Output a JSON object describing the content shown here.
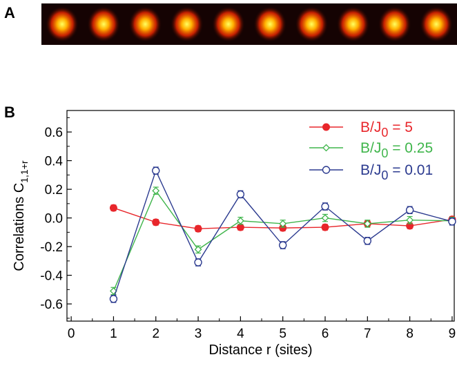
{
  "panel_a": {
    "label": "A",
    "ion_count": 10,
    "background_color": "#150303",
    "glow_color": "#ff2a00",
    "core_color": "#ffff60"
  },
  "panel_b": {
    "label": "B"
  },
  "chart_data": {
    "type": "line",
    "xlabel": "Distance r (sites)",
    "ylabel": "Correlations C",
    "ylabel_subscript": "1,1+r",
    "xlim": [
      -0.1,
      9.05
    ],
    "ylim": [
      -0.72,
      0.75
    ],
    "xticks": [
      0,
      1,
      2,
      3,
      4,
      5,
      6,
      7,
      8,
      9
    ],
    "xtick_labels": [
      "0",
      "1",
      "2",
      "3",
      "4",
      "5",
      "6",
      "7",
      "8",
      "9"
    ],
    "yticks": [
      0.6,
      0.4,
      0.2,
      0.0,
      -0.2,
      -0.4,
      -0.6
    ],
    "ytick_labels": [
      "0.6",
      "0.4",
      "0.2",
      "0.0",
      "-0.2",
      "-0.4",
      "-0.6"
    ],
    "legend_position": "top-right",
    "series": [
      {
        "name_main": "B/J",
        "name_sub": "0",
        "name_suffix": " = 5",
        "color": "#e8262b",
        "marker": "filled-circle",
        "x": [
          1,
          2,
          3,
          4,
          5,
          6,
          7,
          8,
          9
        ],
        "y": [
          0.07,
          -0.03,
          -0.075,
          -0.065,
          -0.07,
          -0.065,
          -0.04,
          -0.055,
          -0.01
        ],
        "err": [
          0.02,
          0.02,
          0.02,
          0.02,
          0.02,
          0.02,
          0.02,
          0.02,
          0.02
        ]
      },
      {
        "name_main": "B/J",
        "name_sub": "0",
        "name_suffix": " = 0.25",
        "color": "#3fb54b",
        "marker": "open-diamond",
        "x": [
          1,
          2,
          3,
          4,
          5,
          6,
          7,
          8,
          9
        ],
        "y": [
          -0.51,
          0.19,
          -0.22,
          -0.02,
          -0.04,
          0.0,
          -0.04,
          -0.015,
          -0.02
        ],
        "err": [
          0.025,
          0.025,
          0.025,
          0.025,
          0.025,
          0.025,
          0.025,
          0.025,
          0.025
        ]
      },
      {
        "name_main": "B/J",
        "name_sub": "0",
        "name_suffix": " = 0.01",
        "color": "#2b3a8f",
        "marker": "open-circle",
        "x": [
          1,
          2,
          3,
          4,
          5,
          6,
          7,
          8,
          9
        ],
        "y": [
          -0.565,
          0.33,
          -0.31,
          0.165,
          -0.19,
          0.08,
          -0.16,
          0.055,
          -0.025
        ],
        "err": [
          0.025,
          0.025,
          0.025,
          0.025,
          0.025,
          0.025,
          0.025,
          0.025,
          0.025
        ]
      }
    ]
  }
}
